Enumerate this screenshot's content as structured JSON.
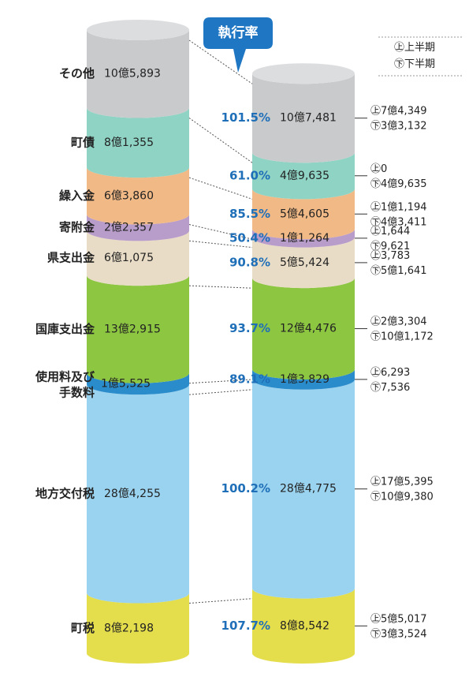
{
  "chart_data": {
    "type": "stacked-cylinder",
    "categories": [
      "町税",
      "地方交付税",
      "使用料及び手数料",
      "国庫支出金",
      "県支出金",
      "寄附金",
      "繰入金",
      "町債",
      "その他"
    ],
    "colors": [
      "#e4dd4c",
      "#9ad3ef",
      "#2b8ccb",
      "#8dc641",
      "#e8dcc6",
      "#b89cca",
      "#f1b985",
      "#8fd3c4",
      "#c9cacc"
    ],
    "series": [
      {
        "name": "budget",
        "values": [
          82198,
          284255,
          15525,
          132915,
          61075,
          22357,
          63860,
          81355,
          105893
        ],
        "value_labels": [
          "8億2,198",
          "28億4,255",
          "1億5,525",
          "13億2,915",
          "6億1,075",
          "2億2,357",
          "6億3,860",
          "8億1,355",
          "10億5,893"
        ]
      },
      {
        "name": "actual",
        "values": [
          88542,
          284775,
          13829,
          124476,
          55424,
          11264,
          54605,
          49635,
          107481
        ],
        "value_labels": [
          "8億8,542",
          "28億4,775",
          "1億3,829",
          "12億4,476",
          "5億5,424",
          "1億1,264",
          "5億4,605",
          "4億9,635",
          "10億7,481"
        ]
      },
      {
        "name": "上半期",
        "marker": "㊤",
        "values": [
          55017,
          175395,
          6293,
          23304,
          3783,
          1644,
          11194,
          0,
          74349
        ],
        "value_labels": [
          "5億5,017",
          "17億5,395",
          "6,293",
          "2億3,304",
          "3,783",
          "1,644",
          "1億1,194",
          "0",
          "7億4,349"
        ]
      },
      {
        "name": "下半期",
        "marker": "㊦",
        "values": [
          33524,
          109380,
          7536,
          101172,
          51641,
          9621,
          43411,
          49635,
          33132
        ],
        "value_labels": [
          "3億3,524",
          "10億9,380",
          "7,536",
          "10億1,172",
          "5億1,641",
          "9,621",
          "4億3,411",
          "4億9,635",
          "3億3,132"
        ]
      },
      {
        "name": "執行率",
        "values": [
          107.7,
          100.2,
          89.1,
          93.7,
          90.8,
          50.4,
          85.5,
          61.0,
          101.5
        ],
        "value_labels": [
          "107.7%",
          "100.2%",
          "89.1%",
          "93.7%",
          "90.8%",
          "50.4%",
          "85.5%",
          "61.0%",
          "101.5%"
        ]
      }
    ]
  }
}
